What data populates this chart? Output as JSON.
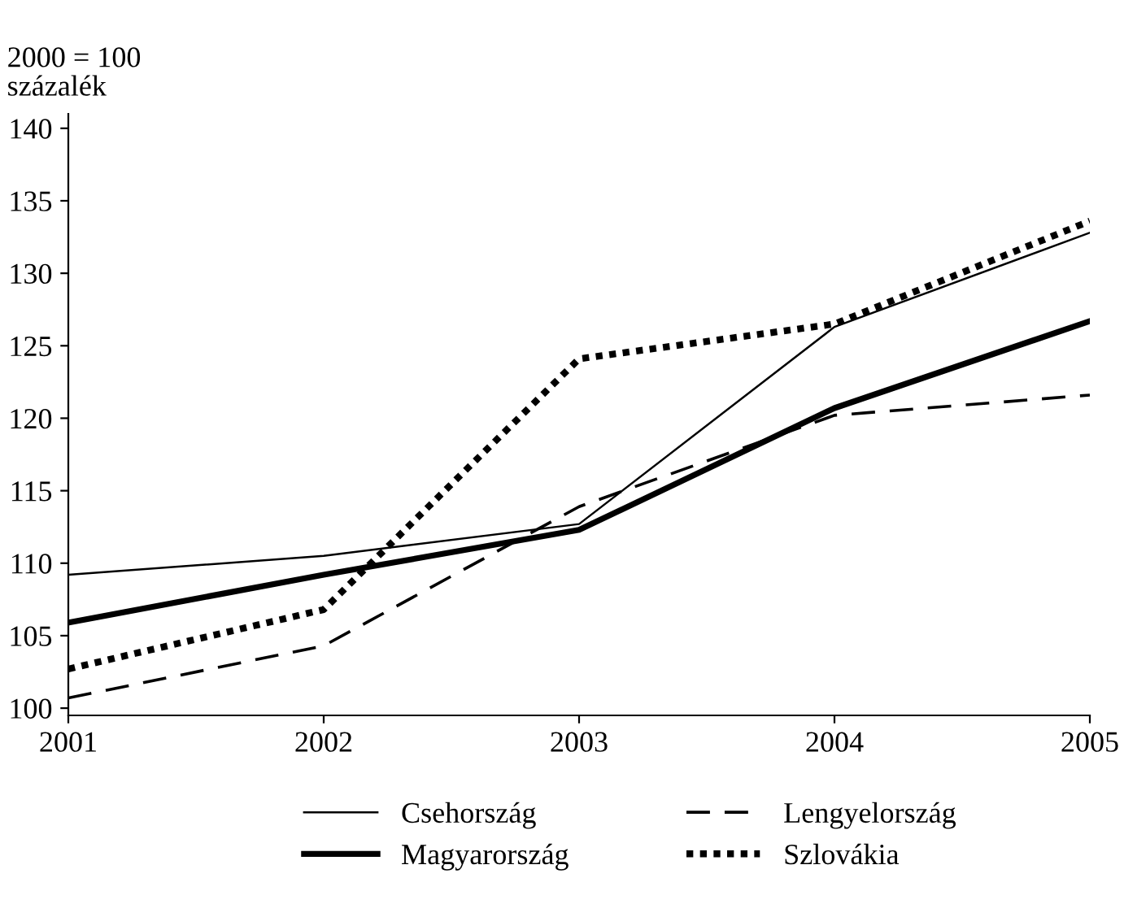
{
  "chart_data": {
    "type": "line",
    "ylabel": "2000 = 100\nszázalék",
    "x": [
      2001,
      2002,
      2003,
      2004,
      2005
    ],
    "series": [
      {
        "name": "Csehország",
        "color": "#000000",
        "line_style": "solid",
        "values": [
          109.2,
          110.5,
          112.7,
          126.3,
          132.8
        ]
      },
      {
        "name": "Lengyelország",
        "color": "#000000",
        "line_style": "dashed",
        "values": [
          100.7,
          104.3,
          113.9,
          120.2,
          121.6
        ]
      },
      {
        "name": "Magyarország",
        "color": "#000000",
        "line_style": "solid",
        "values": [
          105.9,
          109.2,
          112.3,
          120.7,
          126.7
        ]
      },
      {
        "name": "Szlovákia",
        "color": "#000000",
        "line_style": "dotted",
        "values": [
          102.7,
          106.8,
          124.1,
          126.5,
          133.6
        ]
      }
    ],
    "xlim": [
      2001,
      2005
    ],
    "xticks": [
      2001,
      2002,
      2003,
      2004,
      2005
    ],
    "ylim": [
      99.5,
      141
    ],
    "yticks": [
      100,
      105,
      110,
      115,
      120,
      125,
      130,
      135,
      140
    ],
    "grid": false,
    "legend": "bottom",
    "marker": "none"
  }
}
